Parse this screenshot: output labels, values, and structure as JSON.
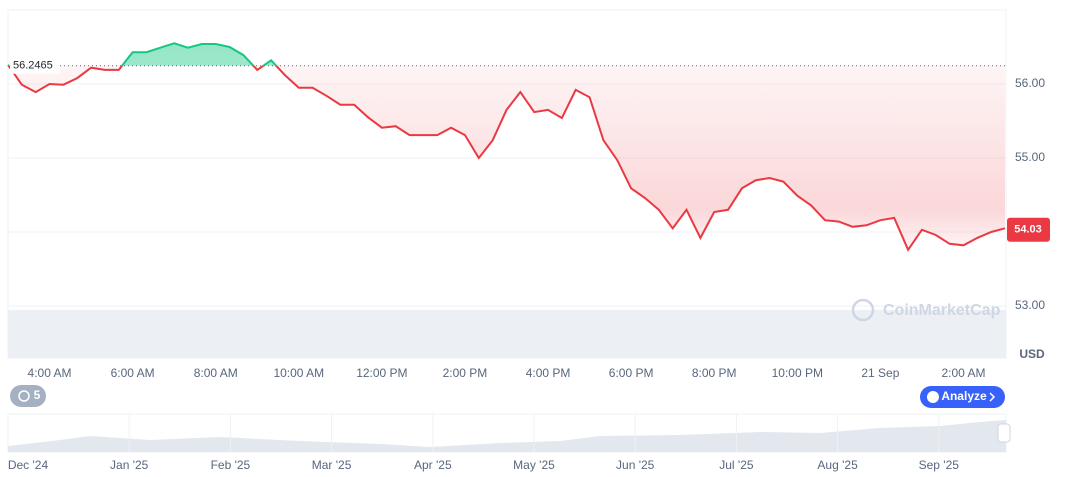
{
  "chart_data": {
    "type": "line",
    "categories": [
      null,
      null,
      null,
      "4:00 AM",
      null,
      null,
      null,
      null,
      null,
      "6:00 AM",
      null,
      null,
      null,
      null,
      null,
      "8:00 AM",
      null,
      null,
      null,
      null,
      null,
      "10:00 AM",
      null,
      null,
      null,
      null,
      null,
      "12:00 PM",
      null,
      null,
      null,
      null,
      null,
      "2:00 PM",
      null,
      null,
      null,
      null,
      null,
      "4:00 PM",
      null,
      null,
      null,
      null,
      null,
      "6:00 PM",
      null,
      null,
      null,
      null,
      null,
      "8:00 PM",
      null,
      null,
      null,
      null,
      null,
      "10:00 PM",
      null,
      null,
      null,
      null,
      null,
      "21 Sep",
      null,
      null,
      null,
      null,
      null,
      "2:00 AM",
      null,
      null,
      null
    ],
    "values": [
      56.26,
      55.99,
      55.89,
      56.0,
      55.99,
      56.08,
      56.22,
      56.19,
      56.19,
      56.43,
      56.43,
      56.49,
      56.55,
      56.49,
      56.54,
      56.54,
      56.5,
      56.39,
      56.19,
      56.32,
      56.12,
      55.95,
      55.95,
      55.84,
      55.72,
      55.72,
      55.55,
      55.41,
      55.43,
      55.31,
      55.31,
      55.31,
      55.41,
      55.31,
      55.0,
      55.24,
      55.65,
      55.89,
      55.62,
      55.65,
      55.54,
      55.92,
      55.82,
      55.24,
      54.97,
      54.59,
      54.46,
      54.3,
      54.05,
      54.3,
      53.92,
      54.27,
      54.3,
      54.59,
      54.7,
      54.73,
      54.68,
      54.49,
      54.36,
      54.16,
      54.14,
      54.07,
      54.09,
      54.16,
      54.19,
      53.76,
      54.03,
      53.96,
      53.84,
      53.82,
      53.92,
      54.0,
      54.05
    ],
    "up_color": "#16c784",
    "down_color": "#ea3943",
    "ylim": [
      53,
      57
    ],
    "yticks": [
      {
        "value": 53,
        "label": "53.00"
      },
      {
        "value": 54,
        "label": "54.00"
      },
      {
        "value": 55,
        "label": "55.00"
      },
      {
        "value": 56,
        "label": "56.00"
      }
    ],
    "grid": true,
    "reference_value": 56.2465,
    "current_price": 54.03,
    "currency": "USD",
    "watermark": "CoinMarketCap"
  },
  "controls": {
    "history_badge": "5",
    "analyze_button": "Analyze"
  },
  "navigator": {
    "labels": [
      "Dec '24",
      "Jan '25",
      "Feb '25",
      "Mar '25",
      "Apr '25",
      "May '25",
      "Jun '25",
      "Jul '25",
      "Aug '25",
      "Sep '25"
    ]
  }
}
